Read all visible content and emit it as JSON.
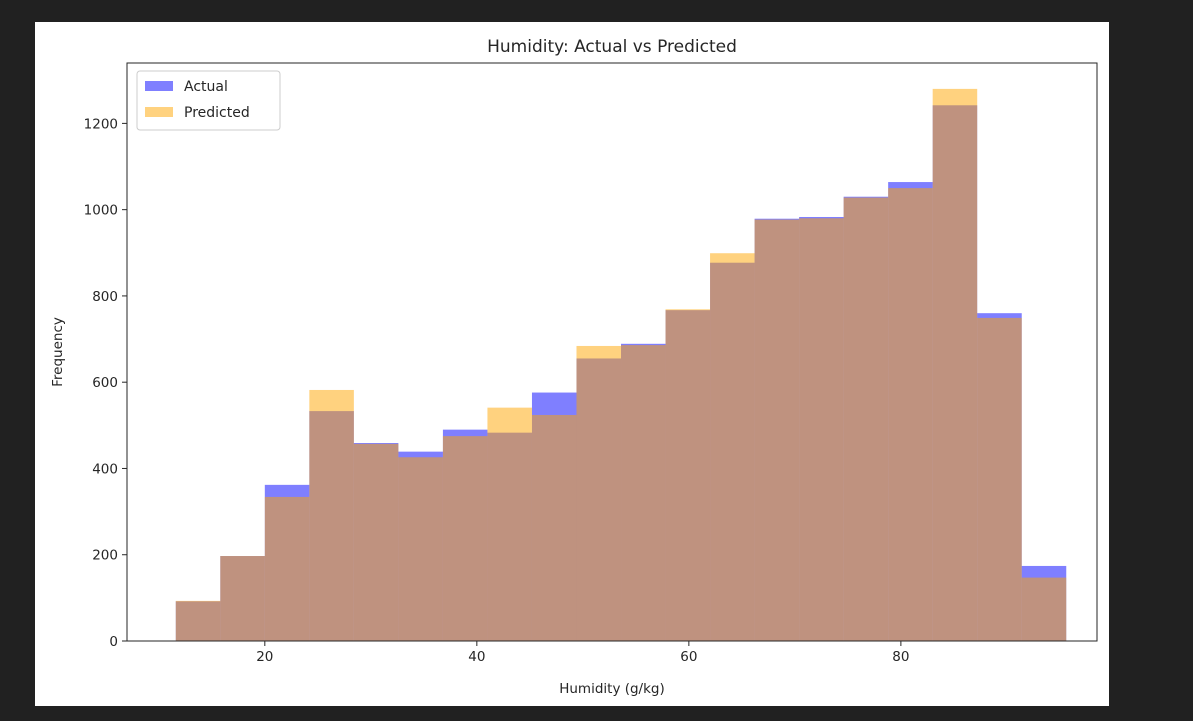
{
  "chart_data": {
    "type": "histogram",
    "title": "Humidity: Actual vs Predicted",
    "xlabel": "Humidity (g/kg)",
    "ylabel": "Frequency",
    "xlim": [
      7,
      98.5
    ],
    "ylim": [
      0,
      1340
    ],
    "xticks": [
      20,
      40,
      60,
      80
    ],
    "yticks": [
      0,
      200,
      400,
      600,
      800,
      1000,
      1200
    ],
    "bin_edges": [
      11.6,
      15.8,
      20.0,
      24.2,
      28.4,
      32.6,
      36.8,
      41.0,
      45.2,
      49.4,
      53.6,
      57.8,
      62.0,
      66.2,
      70.4,
      74.6,
      78.8,
      83.0,
      87.2,
      91.4,
      95.6
    ],
    "grid": false,
    "legend_position": "top-left",
    "series": [
      {
        "name": "Actual",
        "color": "#0000ff",
        "alpha": 0.5,
        "values": [
          92,
          197,
          362,
          533,
          459,
          439,
          490,
          483,
          576,
          655,
          689,
          767,
          877,
          979,
          983,
          1030,
          1064,
          1242,
          760,
          174
        ]
      },
      {
        "name": "Predicted",
        "color": "#ffa500",
        "alpha": 0.5,
        "values": [
          93,
          197,
          334,
          582,
          457,
          426,
          475,
          541,
          524,
          684,
          686,
          769,
          899,
          977,
          980,
          1028,
          1050,
          1280,
          749,
          147
        ]
      }
    ]
  }
}
